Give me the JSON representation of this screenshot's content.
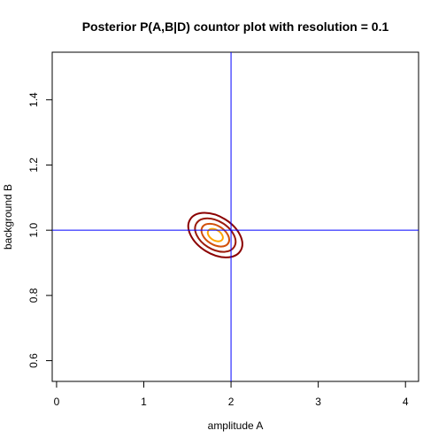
{
  "chart_data": {
    "type": "contour",
    "title": "Posterior P(A,B|D) countor plot with resolution  = 0.1",
    "xlabel": "amplitude A",
    "ylabel": "background B",
    "xlim": [
      -0.05,
      4.15
    ],
    "ylim": [
      0.5364,
      1.5459
    ],
    "xticks": [
      "0",
      "1",
      "2",
      "3",
      "4"
    ],
    "yticks": [
      "0.6",
      "0.8",
      "1.0",
      "1.2",
      "1.4"
    ],
    "grid": false,
    "reference_lines": {
      "x": 2.0,
      "y": 1.0,
      "color": "#0000ff"
    },
    "posterior_center": {
      "A": 1.82,
      "B": 0.985
    },
    "contours": [
      {
        "level": "outer",
        "semi_axis_A": 0.34,
        "semi_axis_B": 0.057,
        "color": "#8b0000"
      },
      {
        "level": "second",
        "semi_axis_A": 0.255,
        "semi_axis_B": 0.043,
        "color": "#9b1a0a"
      },
      {
        "level": "third",
        "semi_axis_A": 0.175,
        "semi_axis_B": 0.029,
        "color": "#d2500a"
      },
      {
        "level": "inner",
        "semi_axis_A": 0.095,
        "semi_axis_B": 0.016,
        "color": "#ffa500"
      }
    ],
    "contour_tilt_deg": 32
  }
}
